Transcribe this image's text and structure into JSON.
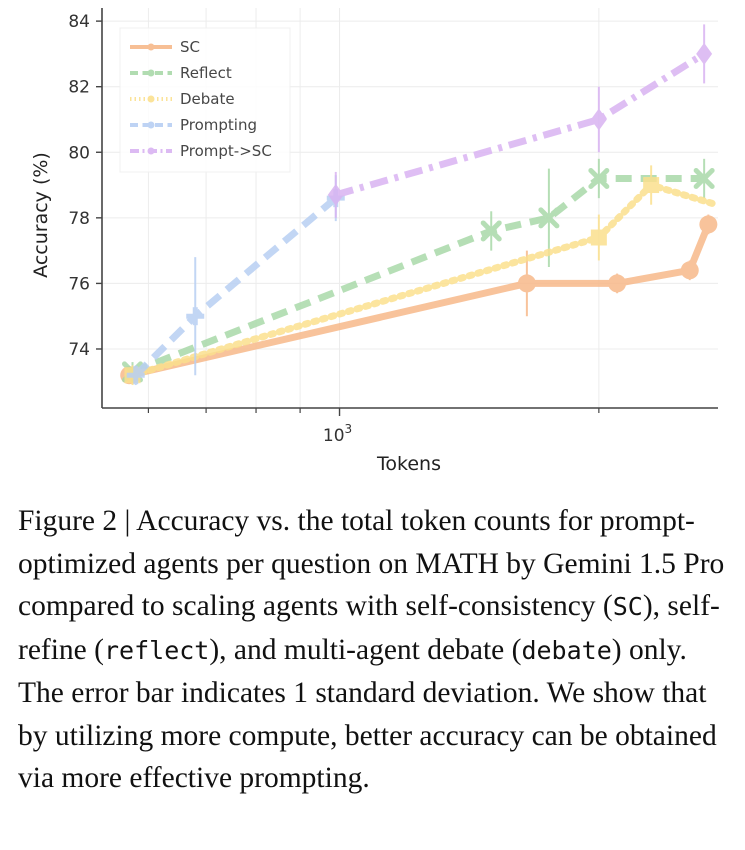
{
  "chart_data": {
    "type": "line",
    "xlabel": "Tokens",
    "ylabel": "Accuracy (%)",
    "x_scale": "log",
    "xlim": [
      530,
      2750
    ],
    "ylim": [
      72.2,
      84.4
    ],
    "yticks": [
      74,
      76,
      78,
      80,
      82,
      84
    ],
    "x_major_tick": {
      "value": 1000,
      "label_base": "10",
      "label_exp": "3"
    },
    "x_minor_ticks": [
      600,
      700,
      800,
      900,
      2000
    ],
    "grid": true,
    "legend_position": "top-left",
    "series": [
      {
        "name": "SC",
        "color": "#F7B98A",
        "dash": "solid",
        "marker": "circle",
        "x": [
          570,
          1650,
          2100,
          2550
        ],
        "y": [
          73.2,
          76.0,
          76.0,
          76.4
        ],
        "err": [
          0.2,
          1.0,
          0.3,
          0.3
        ],
        "extend": {
          "x": 2680,
          "y": 77.8,
          "err": 0.3
        }
      },
      {
        "name": "Reflect",
        "color": "#A9D9A9",
        "dash": "dashed",
        "marker": "x",
        "x": [
          575,
          1500,
          1750,
          2000,
          2650
        ],
        "y": [
          73.3,
          77.6,
          78.0,
          79.2,
          79.2
        ],
        "err": [
          0.3,
          0.6,
          1.5,
          0.6,
          0.6
        ]
      },
      {
        "name": "Debate",
        "color": "#FBE08E",
        "dash": "dotted",
        "marker": "square",
        "x": [
          575,
          2000,
          2300,
          2740
        ],
        "y": [
          73.2,
          77.4,
          79.0,
          78.4
        ],
        "err": [
          0.3,
          0.7,
          0.6,
          0.0
        ]
      },
      {
        "name": "Prompting",
        "color": "#B8CFF3",
        "dash": "dashed",
        "marker": "plus",
        "x": [
          580,
          680,
          990
        ],
        "y": [
          73.2,
          75.0,
          78.6
        ],
        "err": [
          0.3,
          1.8,
          0.7
        ]
      },
      {
        "name": "Prompt->SC",
        "color": "#D9B3F2",
        "dash": "dashdot",
        "marker": "diamond",
        "x": [
          990,
          2000,
          2650
        ],
        "y": [
          78.7,
          81.0,
          83.0
        ],
        "err": [
          0.7,
          1.0,
          0.9
        ]
      }
    ]
  },
  "caption": {
    "lead": "Figure 2 | Accuracy vs. the total token counts for prompt-optimized agents per question on MATH by Gemini 1.5 Pro compared to scaling agents with self-consistency (",
    "code_sc": "SC",
    "mid1": "), self-refine (",
    "code_reflect": "reflect",
    "mid2": "), and multi-agent debate (",
    "code_debate": "debate",
    "tail": ") only. The error bar indicates 1 standard deviation. We show that by utilizing more compute, better accuracy can be obtained via more effective prompting."
  }
}
